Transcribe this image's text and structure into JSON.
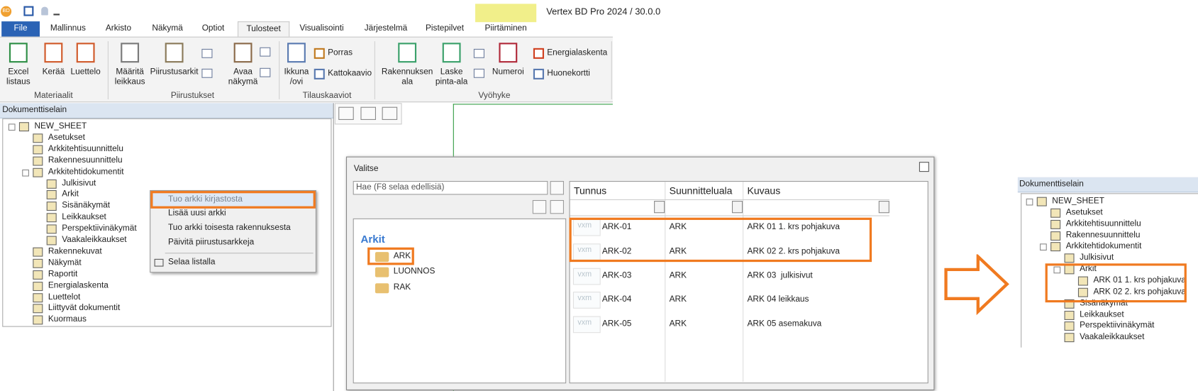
{
  "title_bar": {
    "app_icon": "BD",
    "title": "Vertex BD Pro 2024 / 30.0.0"
  },
  "ribbon": {
    "tabs": [
      "File",
      "Mallinnus",
      "Arkisto",
      "Näkymä",
      "Optiot",
      "Tulosteet",
      "Visualisointi",
      "Järjestelmä",
      "Pistepilvet",
      "Piirtäminen"
    ],
    "buttons": [
      "Excel\nlistaus",
      "Kerää",
      "Luettelo",
      "Määritä\nleikkaus",
      "Piirustusarkit",
      "Avaa\nnäkymä",
      "Ikkuna\n/ovi",
      "Porras",
      "Kattokaavio",
      "Rakennuksen\nala",
      "Laske\npinta-ala",
      "Numeroi",
      "Energialaskenta",
      "Huonekortti"
    ],
    "groups": [
      "Materiaalit",
      "Piirustukset",
      "Tilauskaaviot",
      "Vyöhyke"
    ]
  },
  "left_browser": {
    "title": "Dokumenttiselain",
    "tree": [
      {
        "label": "NEW_SHEET",
        "children": [
          {
            "label": "Asetukset"
          },
          {
            "label": "Arkkitehtisuunnittelu"
          },
          {
            "label": "Rakennesuunnittelu"
          },
          {
            "label": "Arkkitehtidokumentit",
            "children": [
              {
                "label": "Julkisivut"
              },
              {
                "label": "Arkit"
              },
              {
                "label": "Sisänäkymät"
              },
              {
                "label": "Leikkaukset"
              },
              {
                "label": "Perspektiivinäkymät"
              },
              {
                "label": "Vaakaleikkaukset"
              }
            ]
          },
          {
            "label": "Rakennekuvat"
          },
          {
            "label": "Näkymät"
          },
          {
            "label": "Raportit"
          },
          {
            "label": "Energialaskenta"
          },
          {
            "label": "Luettelot"
          },
          {
            "label": "Liittyvät dokumentit"
          },
          {
            "label": "Kuormaus"
          }
        ]
      }
    ]
  },
  "context_menu": {
    "items": [
      "Tuo arkki kirjastosta",
      "Lisää uusi arkki",
      "Tuo arkki toisesta rakennuksesta",
      "Päivitä piirustusarkkeja",
      "Selaa listalla"
    ]
  },
  "dialog": {
    "title": "Valitse",
    "search_placeholder": "Hae (F8 selaa edellisiä)",
    "folder_heading": "Arkit",
    "folders": [
      "ARK",
      "LUONNOS",
      "RAK"
    ],
    "table": {
      "columns": [
        "Tunnus",
        "Suunnitteluala",
        "Kuvaus"
      ],
      "thumbnail": "vxm",
      "rows": [
        [
          "ARK-01",
          "ARK",
          "ARK 01 1. krs pohjakuva"
        ],
        [
          "ARK-02",
          "ARK",
          "ARK 02 2. krs pohjakuva"
        ],
        [
          "ARK-03",
          "ARK",
          "ARK 03  julkisivut"
        ],
        [
          "ARK-04",
          "ARK",
          "ARK 04 leikkaus"
        ],
        [
          "ARK-05",
          "ARK",
          "ARK 05 asemakuva"
        ]
      ]
    }
  },
  "result_browser": {
    "title": "Dokumenttiselain",
    "tree": [
      {
        "label": "NEW_SHEET",
        "children": [
          {
            "label": "Asetukset"
          },
          {
            "label": "Arkkitehtisuunnittelu"
          },
          {
            "label": "Rakennesuunnittelu"
          },
          {
            "label": "Arkkitehtidokumentit",
            "children": [
              {
                "label": "Julkisivut"
              },
              {
                "label": "Arkit",
                "children": [
                  {
                    "label": "ARK 01 1. krs pohjakuva"
                  },
                  {
                    "label": "ARK 02 2. krs pohjakuva"
                  }
                ]
              },
              {
                "label": "Sisänäkymät"
              },
              {
                "label": "Leikkaukset"
              },
              {
                "label": "Perspektiivinäkymät"
              },
              {
                "label": "Vaakaleikkaukset"
              }
            ]
          }
        ]
      }
    ]
  }
}
